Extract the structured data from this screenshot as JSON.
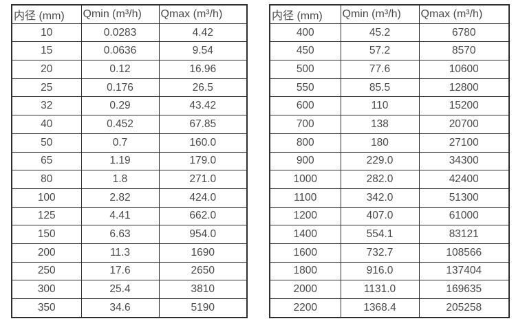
{
  "colors": {
    "background": "#ffffff",
    "border": "#2d2d2d",
    "text": "#484848"
  },
  "chart_data": [
    {
      "type": "table",
      "name": "flow-capacity-spec-small-diameters",
      "headers": [
        "内径 (mm)",
        "Qmin (m³/h)",
        "Qmax (m³/h)"
      ],
      "rows": [
        [
          "10",
          "0.0283",
          "4.42"
        ],
        [
          "15",
          "0.0636",
          "9.54"
        ],
        [
          "20",
          "0.12",
          "16.96"
        ],
        [
          "25",
          "0.176",
          "26.5"
        ],
        [
          "32",
          "0.29",
          "43.42"
        ],
        [
          "40",
          "0.452",
          "67.85"
        ],
        [
          "50",
          "0.7",
          "160.0"
        ],
        [
          "65",
          "1.19",
          "179.0"
        ],
        [
          "80",
          "1.8",
          "271.0"
        ],
        [
          "100",
          "2.82",
          "424.0"
        ],
        [
          "125",
          "4.41",
          "662.0"
        ],
        [
          "150",
          "6.63",
          "954.0"
        ],
        [
          "200",
          "11.3",
          "1690"
        ],
        [
          "250",
          "17.6",
          "2650"
        ],
        [
          "300",
          "25.4",
          "3810"
        ],
        [
          "350",
          "34.6",
          "5190"
        ]
      ]
    },
    {
      "type": "table",
      "name": "flow-capacity-spec-large-diameters",
      "headers": [
        "内径 (mm)",
        "Qmin (m³/h)",
        "Qmax (m³/h)"
      ],
      "rows": [
        [
          "400",
          "45.2",
          "6780"
        ],
        [
          "450",
          "57.2",
          "8570"
        ],
        [
          "500",
          "77.6",
          "10600"
        ],
        [
          "550",
          "85.5",
          "12800"
        ],
        [
          "600",
          "110",
          "15200"
        ],
        [
          "700",
          "138",
          "20700"
        ],
        [
          "800",
          "180",
          "27100"
        ],
        [
          "900",
          "229.0",
          "34300"
        ],
        [
          "1000",
          "282.0",
          "42400"
        ],
        [
          "1100",
          "342.0",
          "51300"
        ],
        [
          "1200",
          "407.0",
          "61000"
        ],
        [
          "1400",
          "554.1",
          "83121"
        ],
        [
          "1600",
          "732.7",
          "108566"
        ],
        [
          "1800",
          "916.0",
          "137404"
        ],
        [
          "2000",
          "1131.0",
          "169635"
        ],
        [
          "2200",
          "1368.4",
          "205258"
        ]
      ]
    }
  ]
}
